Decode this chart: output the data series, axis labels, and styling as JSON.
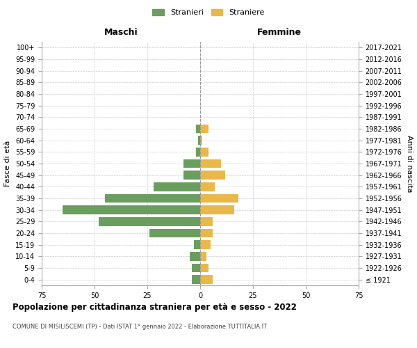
{
  "age_groups": [
    "100+",
    "95-99",
    "90-94",
    "85-89",
    "80-84",
    "75-79",
    "70-74",
    "65-69",
    "60-64",
    "55-59",
    "50-54",
    "45-49",
    "40-44",
    "35-39",
    "30-34",
    "25-29",
    "20-24",
    "15-19",
    "10-14",
    "5-9",
    "0-4"
  ],
  "birth_years": [
    "≤ 1921",
    "1922-1926",
    "1927-1931",
    "1932-1936",
    "1937-1941",
    "1942-1946",
    "1947-1951",
    "1952-1956",
    "1957-1961",
    "1962-1966",
    "1967-1971",
    "1972-1976",
    "1977-1981",
    "1982-1986",
    "1987-1991",
    "1992-1996",
    "1997-2001",
    "2002-2006",
    "2007-2011",
    "2012-2016",
    "2017-2021"
  ],
  "males": [
    0,
    0,
    0,
    0,
    0,
    0,
    0,
    2,
    1,
    2,
    8,
    8,
    22,
    45,
    65,
    48,
    24,
    3,
    5,
    4,
    4
  ],
  "females": [
    0,
    0,
    0,
    0,
    0,
    0,
    0,
    4,
    1,
    4,
    10,
    12,
    7,
    18,
    16,
    6,
    6,
    5,
    3,
    4,
    6
  ],
  "male_color": "#6a9e5f",
  "female_color": "#e8b84b",
  "background_color": "#ffffff",
  "grid_color": "#cccccc",
  "title": "Popolazione per cittadinanza straniera per età e sesso - 2022",
  "subtitle": "COMUNE DI MISILISCEMI (TP) - Dati ISTAT 1° gennaio 2022 - Elaborazione TUTTITALIA.IT",
  "xlabel_left": "Maschi",
  "xlabel_right": "Femmine",
  "ylabel_left": "Fasce di età",
  "ylabel_right": "Anni di nascita",
  "xlim": 75,
  "legend_stranieri": "Stranieri",
  "legend_straniere": "Straniere"
}
